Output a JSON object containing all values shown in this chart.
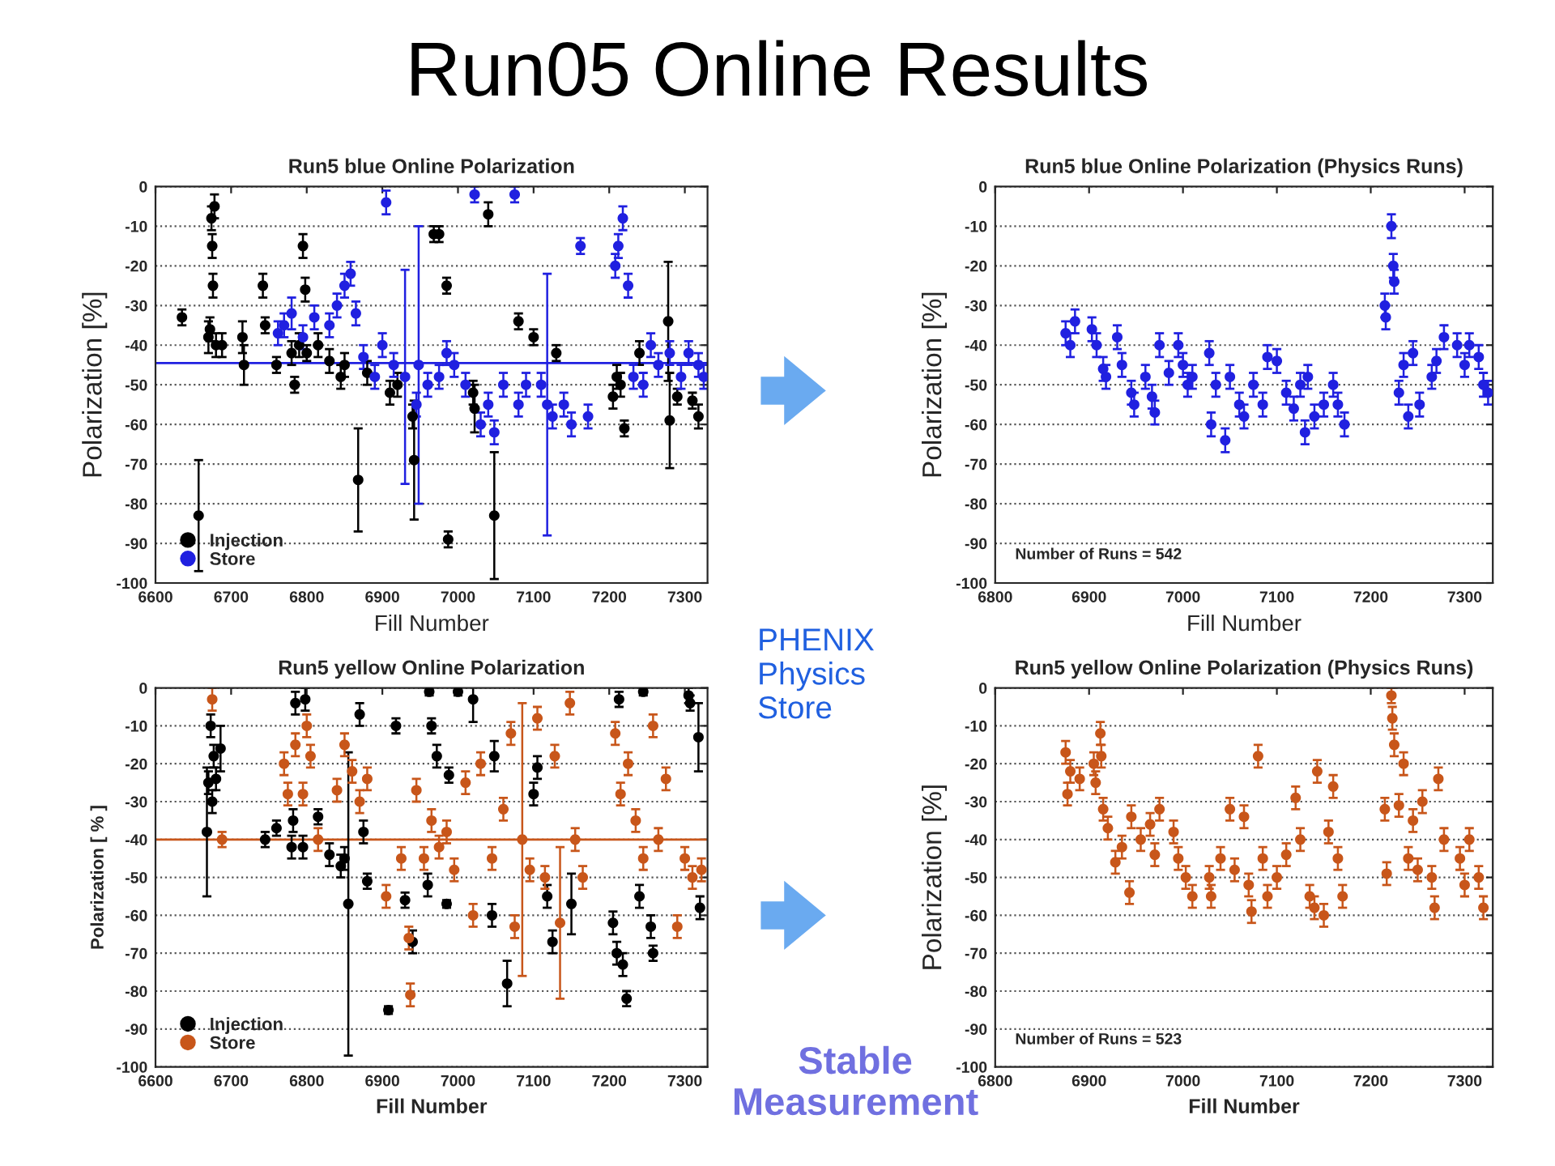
{
  "chart_data": [
    {
      "type": "scatter",
      "title": "Run5 blue Online Polarization",
      "xlabel": "Fill Number",
      "ylabel": "Polarization [%]",
      "annotations": [
        "Run05 Online Results"
      ],
      "xlim": [
        6600,
        7330
      ],
      "xticks": [
        6600,
        6700,
        6800,
        6900,
        7000,
        7100,
        7200,
        7300
      ],
      "ylim": [
        -100,
        0
      ],
      "yticks": [
        -100,
        -90,
        -80,
        -70,
        -60,
        -50,
        -40,
        -30,
        -20,
        -10,
        0
      ],
      "grid": "y",
      "legend": "bottom left",
      "marker": "circle",
      "ref_lines": [
        {
          "axis": "y",
          "value": -44.5,
          "color": "#2020e0"
        }
      ],
      "series": [
        {
          "name": "Injection",
          "color": "#000000",
          "x": [
            6635,
            6657,
            6670,
            6672,
            6674,
            6675,
            6676,
            6678,
            6680,
            6688,
            6715,
            6717,
            6742,
            6745,
            6760,
            6780,
            6784,
            6790,
            6795,
            6798,
            6800,
            6815,
            6830,
            6845,
            6850,
            6868,
            6880,
            6910,
            6920,
            6940,
            6942,
            6968,
            6975,
            6985,
            6987,
            7020,
            7022,
            7040,
            7048,
            7080,
            7100,
            7130,
            7205,
            7210,
            7215,
            7220,
            7240,
            7278,
            7280,
            7290,
            7310,
            7318
          ],
          "values": [
            -33,
            -83,
            -38,
            -36,
            -8,
            -15,
            -25,
            -5,
            -40,
            -40,
            -38,
            -45,
            -25,
            -35,
            -45,
            -42,
            -50,
            -40,
            -15,
            -26,
            -42,
            -40,
            -44,
            -48,
            -45,
            -74,
            -47,
            -52,
            -50,
            -58,
            -69,
            -12,
            -12,
            -25,
            -89,
            -52,
            -56,
            -7,
            -83,
            -34,
            -38,
            -42,
            -53,
            -48,
            -50,
            -61,
            -42,
            -34,
            -59,
            -53,
            -54,
            -58
          ],
          "errors": [
            2,
            14,
            4,
            3,
            3,
            3,
            3,
            3,
            3,
            3,
            4,
            5,
            3,
            2,
            2,
            3,
            2,
            3,
            3,
            3,
            2,
            3,
            3,
            3,
            3,
            13,
            3,
            3,
            3,
            3,
            15,
            2,
            2,
            2,
            2,
            3,
            6,
            3,
            16,
            2,
            2,
            2,
            3,
            3,
            3,
            2,
            3,
            15,
            12,
            2,
            2,
            3
          ]
        },
        {
          "name": "Store",
          "color": "#2020e0",
          "x": [
            6762,
            6770,
            6780,
            6795,
            6810,
            6830,
            6840,
            6850,
            6858,
            6865,
            6875,
            6890,
            6900,
            6905,
            6915,
            6930,
            6945,
            6948,
            6960,
            6975,
            6985,
            6995,
            7010,
            7022,
            7030,
            7040,
            7048,
            7060,
            7075,
            7080,
            7090,
            7110,
            7118,
            7125,
            7140,
            7150,
            7162,
            7172,
            7208,
            7212,
            7218,
            7225,
            7232,
            7245,
            7255,
            7265,
            7280,
            7295,
            7305,
            7318,
            7325
          ],
          "values": [
            -37,
            -35,
            -32,
            -38,
            -33,
            -35,
            -30,
            -25,
            -22,
            -32,
            -43,
            -48,
            -40,
            -4,
            -45,
            -48,
            -55,
            -45,
            -50,
            -48,
            -42,
            -45,
            -50,
            -2,
            -60,
            -55,
            -62,
            -50,
            -2,
            -55,
            -50,
            -50,
            -55,
            -58,
            -55,
            -60,
            -15,
            -58,
            -20,
            -15,
            -8,
            -25,
            -48,
            -50,
            -40,
            -45,
            -42,
            -48,
            -42,
            -45,
            -48
          ],
          "errors": [
            3,
            3,
            4,
            3,
            3,
            3,
            3,
            3,
            3,
            3,
            3,
            3,
            3,
            3,
            3,
            27,
            3,
            35,
            3,
            3,
            3,
            3,
            3,
            2,
            3,
            3,
            3,
            3,
            2,
            3,
            3,
            3,
            33,
            3,
            3,
            3,
            2,
            3,
            3,
            3,
            3,
            3,
            3,
            3,
            3,
            3,
            3,
            3,
            3,
            3,
            3
          ]
        }
      ]
    },
    {
      "type": "scatter",
      "title": "Run5 blue Online Polarization (Physics Runs)",
      "xlabel": "Fill Number",
      "ylabel": "Polarization [%]",
      "annotations": [
        "Number of Runs = 542",
        "PHENIX Physics Store"
      ],
      "xlim": [
        6800,
        7330
      ],
      "xticks": [
        6800,
        6900,
        7000,
        7100,
        7200,
        7300
      ],
      "ylim": [
        -100,
        0
      ],
      "yticks": [
        -100,
        -90,
        -80,
        -70,
        -60,
        -50,
        -40,
        -30,
        -20,
        -10,
        0
      ],
      "grid": "y",
      "marker": "circle",
      "series": [
        {
          "color": "#2020e0",
          "x": [
            6875,
            6880,
            6885,
            6903,
            6908,
            6915,
            6918,
            6930,
            6935,
            6945,
            6948,
            6960,
            6967,
            6970,
            6975,
            6985,
            6995,
            7000,
            7005,
            7010,
            7028,
            7030,
            7035,
            7045,
            7050,
            7060,
            7065,
            7075,
            7085,
            7090,
            7100,
            7110,
            7118,
            7125,
            7130,
            7133,
            7140,
            7150,
            7160,
            7165,
            7172,
            7215,
            7216,
            7222,
            7224,
            7225,
            7230,
            7235,
            7240,
            7245,
            7252,
            7265,
            7270,
            7278,
            7292,
            7300,
            7305,
            7315,
            7320,
            7325
          ],
          "values": [
            -37,
            -40,
            -34,
            -36,
            -40,
            -46,
            -48,
            -38,
            -45,
            -52,
            -55,
            -48,
            -53,
            -57,
            -40,
            -47,
            -40,
            -45,
            -50,
            -48,
            -42,
            -60,
            -50,
            -64,
            -48,
            -55,
            -58,
            -50,
            -55,
            -43,
            -44,
            -52,
            -56,
            -50,
            -62,
            -48,
            -58,
            -55,
            -50,
            -55,
            -60,
            -30,
            -33,
            -10,
            -20,
            -24,
            -52,
            -45,
            -58,
            -42,
            -55,
            -48,
            -44,
            -38,
            -40,
            -45,
            -40,
            -43,
            -50,
            -52
          ],
          "errors": [
            3,
            3,
            3,
            3,
            3,
            3,
            3,
            3,
            3,
            3,
            3,
            3,
            3,
            3,
            3,
            3,
            3,
            3,
            3,
            3,
            3,
            3,
            3,
            3,
            3,
            3,
            3,
            3,
            3,
            3,
            3,
            3,
            3,
            3,
            3,
            3,
            3,
            3,
            3,
            3,
            3,
            3,
            3,
            3,
            3,
            3,
            3,
            3,
            3,
            3,
            3,
            3,
            3,
            3,
            3,
            3,
            3,
            3,
            3,
            3
          ]
        }
      ]
    },
    {
      "type": "scatter",
      "title": "Run5 yellow Online Polarization",
      "xlabel": "Fill Number",
      "ylabel": "Polarization [ % ]",
      "annotations": [
        "Stable Measurement"
      ],
      "xlim": [
        6600,
        7330
      ],
      "xticks": [
        6600,
        6700,
        6800,
        6900,
        7000,
        7100,
        7200,
        7300
      ],
      "ylim": [
        -100,
        0
      ],
      "yticks": [
        -100,
        -90,
        -80,
        -70,
        -60,
        -50,
        -40,
        -30,
        -20,
        -10,
        0
      ],
      "grid": "y",
      "legend": "bottom left",
      "marker": "circle",
      "ref_lines": [
        {
          "axis": "y",
          "value": -40,
          "color": "#c8561a"
        }
      ],
      "series": [
        {
          "name": "Injection",
          "color": "#000000",
          "x": [
            6668,
            6670,
            6673,
            6675,
            6677,
            6680,
            6686,
            6745,
            6760,
            6780,
            6782,
            6785,
            6795,
            6798,
            6815,
            6830,
            6845,
            6850,
            6855,
            6870,
            6875,
            6880,
            6908,
            6918,
            6930,
            6940,
            6960,
            6962,
            6965,
            6972,
            6985,
            6988,
            7000,
            7020,
            7045,
            7048,
            7065,
            7100,
            7105,
            7118,
            7125,
            7150,
            7205,
            7210,
            7213,
            7218,
            7223,
            7240,
            7245,
            7255,
            7258,
            7305,
            7307,
            7318,
            7320
          ],
          "values": [
            -38,
            -25,
            -10,
            -30,
            -18,
            -24,
            -16,
            -40,
            -37,
            -42,
            -35,
            -4,
            -42,
            -3,
            -34,
            -44,
            -47,
            -45,
            -57,
            -7,
            -38,
            -51,
            -85,
            -10,
            -56,
            -67,
            -52,
            -1,
            -10,
            -18,
            -57,
            -23,
            -1,
            -3,
            -60,
            -18,
            -78,
            -28,
            -21,
            -55,
            -67,
            -57,
            -62,
            -70,
            -3,
            -73,
            -82,
            -55,
            -1,
            -63,
            -70,
            -2,
            -4,
            -13,
            -58
          ],
          "errors": [
            17,
            3,
            3,
            3,
            3,
            3,
            6,
            2,
            2,
            3,
            3,
            3,
            3,
            3,
            2,
            3,
            3,
            3,
            40,
            3,
            3,
            2,
            1,
            2,
            2,
            3,
            3,
            1,
            2,
            3,
            1,
            2,
            1,
            6,
            3,
            4,
            6,
            3,
            3,
            3,
            3,
            8,
            3,
            3,
            2,
            3,
            2,
            3,
            1,
            3,
            2,
            2,
            2,
            9,
            3
          ]
        },
        {
          "name": "Store",
          "color": "#c8561a",
          "x": [
            6675,
            6688,
            6770,
            6775,
            6785,
            6795,
            6800,
            6805,
            6815,
            6840,
            6850,
            6860,
            6870,
            6880,
            6905,
            6925,
            6935,
            6937,
            6945,
            6955,
            6965,
            6975,
            6985,
            6995,
            7010,
            7020,
            7030,
            7045,
            7060,
            7070,
            7075,
            7085,
            7095,
            7105,
            7115,
            7128,
            7135,
            7148,
            7155,
            7165,
            7208,
            7215,
            7225,
            7235,
            7245,
            7258,
            7265,
            7275,
            7290,
            7300,
            7310,
            7322
          ],
          "values": [
            -3,
            -40,
            -20,
            -28,
            -15,
            -28,
            -10,
            -18,
            -40,
            -27,
            -15,
            -22,
            -30,
            -24,
            -55,
            -45,
            -66,
            -81,
            -27,
            -45,
            -35,
            -42,
            -38,
            -48,
            -25,
            -60,
            -20,
            -45,
            -32,
            -12,
            -63,
            -40,
            -48,
            -8,
            -50,
            -18,
            -62,
            -4,
            -40,
            -50,
            -12,
            -28,
            -20,
            -35,
            -45,
            -10,
            -40,
            -24,
            -63,
            -45,
            -50,
            -48
          ],
          "errors": [
            3,
            2,
            3,
            3,
            3,
            3,
            3,
            3,
            3,
            3,
            3,
            3,
            3,
            3,
            3,
            3,
            3,
            3,
            3,
            3,
            3,
            3,
            3,
            3,
            3,
            3,
            3,
            3,
            3,
            3,
            3,
            36,
            3,
            3,
            3,
            3,
            20,
            3,
            3,
            3,
            3,
            3,
            3,
            3,
            3,
            3,
            3,
            3,
            3,
            3,
            3,
            3
          ]
        }
      ]
    },
    {
      "type": "scatter",
      "title": "Run5 yellow Online Polarization (Physics Runs)",
      "xlabel": "Fill Number",
      "ylabel": "Polarization [%]",
      "annotations": [
        "Number of Runs = 523"
      ],
      "xlim": [
        6800,
        7330
      ],
      "xticks": [
        6800,
        6900,
        7000,
        7100,
        7200,
        7300
      ],
      "ylim": [
        -100,
        0
      ],
      "yticks": [
        -100,
        -90,
        -80,
        -70,
        -60,
        -50,
        -40,
        -30,
        -20,
        -10,
        0
      ],
      "grid": "y",
      "marker": "circle",
      "series": [
        {
          "color": "#c8561a",
          "x": [
            6875,
            6877,
            6880,
            6890,
            6905,
            6907,
            6912,
            6913,
            6915,
            6920,
            6928,
            6935,
            6943,
            6945,
            6955,
            6965,
            6970,
            6975,
            6990,
            6995,
            7003,
            7010,
            7028,
            7030,
            7040,
            7050,
            7055,
            7065,
            7070,
            7073,
            7080,
            7085,
            7090,
            7100,
            7110,
            7120,
            7125,
            7135,
            7140,
            7143,
            7150,
            7155,
            7160,
            7165,
            7170,
            7215,
            7217,
            7222,
            7223,
            7225,
            7230,
            7235,
            7240,
            7245,
            7250,
            7255,
            7265,
            7268,
            7272,
            7278,
            7295,
            7300,
            7305,
            7315,
            7320
          ],
          "values": [
            -17,
            -28,
            -22,
            -24,
            -20,
            -25,
            -12,
            -18,
            -32,
            -37,
            -46,
            -42,
            -54,
            -34,
            -40,
            -36,
            -44,
            -32,
            -38,
            -45,
            -50,
            -55,
            -50,
            -55,
            -45,
            -32,
            -48,
            -34,
            -52,
            -59,
            -18,
            -45,
            -55,
            -50,
            -44,
            -29,
            -40,
            -55,
            -58,
            -22,
            -60,
            -38,
            -26,
            -45,
            -55,
            -32,
            -49,
            -2,
            -8,
            -15,
            -31,
            -20,
            -45,
            -35,
            -48,
            -30,
            -50,
            -58,
            -24,
            -40,
            -45,
            -52,
            -40,
            -50,
            -58
          ],
          "errors": [
            3,
            3,
            3,
            3,
            3,
            3,
            3,
            3,
            3,
            3,
            3,
            3,
            3,
            3,
            3,
            3,
            3,
            3,
            3,
            3,
            3,
            3,
            3,
            3,
            3,
            3,
            3,
            3,
            3,
            3,
            3,
            3,
            3,
            3,
            3,
            3,
            3,
            3,
            3,
            3,
            3,
            3,
            3,
            3,
            3,
            3,
            3,
            2,
            3,
            3,
            3,
            3,
            3,
            3,
            3,
            3,
            3,
            3,
            3,
            3,
            3,
            3,
            3,
            3,
            3
          ]
        }
      ]
    }
  ]
}
